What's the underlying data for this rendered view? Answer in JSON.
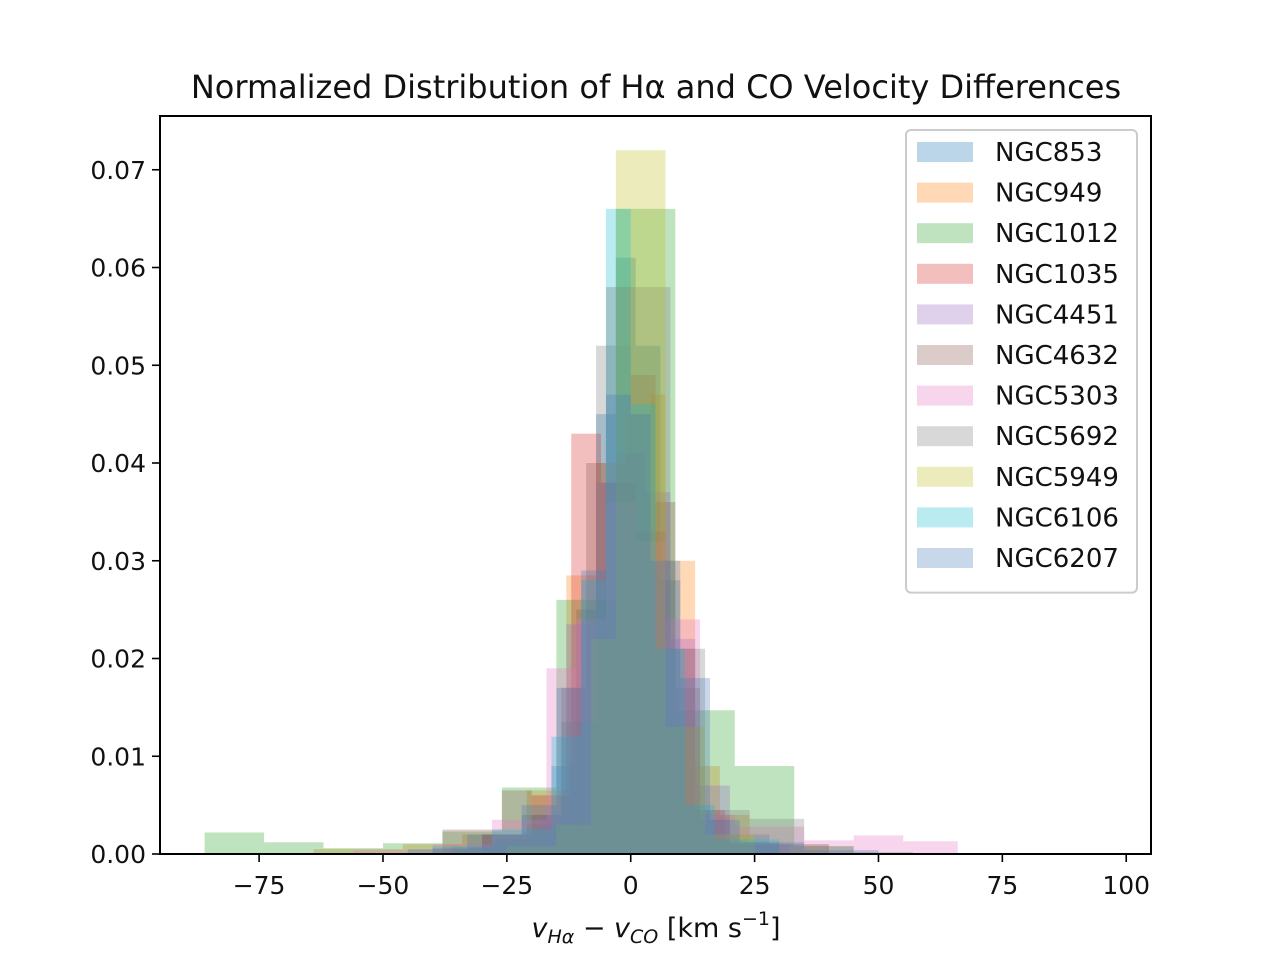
{
  "chart_data": {
    "type": "histogram",
    "title": "Normalized Distribution of Hα and CO Velocity Differences",
    "xlabel": {
      "v1": "v",
      "sub1": "Hα",
      "minus": " − ",
      "v2": "v",
      "sub2": "CO",
      "units": " [km s",
      "exp": "−1",
      "close": "]"
    },
    "ylabel": "",
    "xlim": [
      -95,
      105
    ],
    "ylim": [
      0,
      0.0755
    ],
    "xticks": [
      -75,
      -50,
      -25,
      0,
      25,
      50,
      75,
      100
    ],
    "xtick_labels": [
      "−75",
      "−50",
      "−25",
      "0",
      "25",
      "50",
      "75",
      "100"
    ],
    "yticks": [
      0,
      0.01,
      0.02,
      0.03,
      0.04,
      0.05,
      0.06,
      0.07
    ],
    "ytick_labels": [
      "0.00",
      "0.01",
      "0.02",
      "0.03",
      "0.04",
      "0.05",
      "0.06",
      "0.07"
    ],
    "legend_position": "top-right",
    "series": [
      {
        "name": "NGC853",
        "color": "#1f77b4",
        "bins": [
          [
            -30,
            -22,
            0.002
          ],
          [
            -22,
            -16,
            0.004
          ],
          [
            -16,
            -11,
            0.009
          ],
          [
            -11,
            -7,
            0.025
          ],
          [
            -7,
            -3,
            0.045
          ],
          [
            -3,
            1,
            0.061
          ],
          [
            1,
            6,
            0.052
          ],
          [
            6,
            10,
            0.028
          ],
          [
            10,
            14,
            0.013
          ],
          [
            14,
            20,
            0.004
          ],
          [
            20,
            28,
            0.002
          ],
          [
            28,
            40,
            0.001
          ]
        ]
      },
      {
        "name": "NGC949",
        "color": "#ff7f0e",
        "bins": [
          [
            -64,
            -46,
            0.0005
          ],
          [
            -46,
            -34,
            0.001
          ],
          [
            -34,
            -21,
            0.002
          ],
          [
            -21,
            -13,
            0.0065
          ],
          [
            -13,
            -7,
            0.0285
          ],
          [
            -7,
            -1,
            0.04
          ],
          [
            -1,
            4,
            0.045
          ],
          [
            4,
            7,
            0.047
          ],
          [
            7,
            13,
            0.03
          ],
          [
            13,
            18,
            0.009
          ],
          [
            18,
            24,
            0.004
          ],
          [
            24,
            40,
            0.001
          ]
        ]
      },
      {
        "name": "NGC1012",
        "color": "#2ca02c",
        "bins": [
          [
            -86,
            -74,
            0.0022
          ],
          [
            -74,
            -62,
            0.0012
          ],
          [
            -62,
            -50,
            0.0006
          ],
          [
            -50,
            -38,
            0.0011
          ],
          [
            -38,
            -26,
            0.0023
          ],
          [
            -26,
            -15,
            0.0068
          ],
          [
            -15,
            -3,
            0.026
          ],
          [
            -3,
            9,
            0.066
          ],
          [
            9,
            21,
            0.0147
          ],
          [
            21,
            33,
            0.009
          ],
          [
            33,
            45,
            0.0008
          ],
          [
            45,
            57,
            0.0002
          ]
        ]
      },
      {
        "name": "NGC1035",
        "color": "#d62728",
        "bins": [
          [
            -40,
            -30,
            0.0006
          ],
          [
            -30,
            -20,
            0.002
          ],
          [
            -20,
            -12,
            0.006
          ],
          [
            -12,
            -6,
            0.043
          ],
          [
            -6,
            1,
            0.038
          ],
          [
            1,
            7,
            0.033
          ],
          [
            7,
            13,
            0.021
          ],
          [
            13,
            19,
            0.0045
          ],
          [
            19,
            30,
            0.0012
          ]
        ]
      },
      {
        "name": "NGC4451",
        "color": "#9467bd",
        "bins": [
          [
            -30,
            -18,
            0.001
          ],
          [
            -18,
            -13,
            0.004
          ],
          [
            -13,
            -7,
            0.0235
          ],
          [
            -7,
            -3,
            0.038
          ],
          [
            -3,
            3,
            0.041
          ],
          [
            3,
            8,
            0.037
          ],
          [
            8,
            13,
            0.022
          ],
          [
            13,
            20,
            0.007
          ],
          [
            20,
            32,
            0.001
          ]
        ]
      },
      {
        "name": "NGC4632",
        "color": "#8c564b",
        "bins": [
          [
            -38,
            -26,
            0.0025
          ],
          [
            -26,
            -20,
            0.0065
          ],
          [
            -20,
            -14,
            0.004
          ],
          [
            -14,
            -9,
            0.017
          ],
          [
            -9,
            -5,
            0.04
          ],
          [
            -5,
            0,
            0.058
          ],
          [
            0,
            5,
            0.049
          ],
          [
            5,
            9,
            0.036
          ],
          [
            9,
            14,
            0.017
          ],
          [
            14,
            20,
            0.0035
          ],
          [
            20,
            30,
            0.001
          ]
        ]
      },
      {
        "name": "NGC5303",
        "color": "#e377c2",
        "bins": [
          [
            -56,
            -40,
            0.0004
          ],
          [
            -40,
            -28,
            0.001
          ],
          [
            -28,
            -17,
            0.0035
          ],
          [
            -17,
            -11,
            0.019
          ],
          [
            -11,
            -5,
            0.024
          ],
          [
            -5,
            1,
            0.036
          ],
          [
            1,
            7,
            0.032
          ],
          [
            7,
            14,
            0.024
          ],
          [
            14,
            21,
            0.004
          ],
          [
            21,
            35,
            0.0028
          ],
          [
            35,
            45,
            0.0014
          ],
          [
            45,
            55,
            0.0019
          ],
          [
            55,
            66,
            0.0013
          ]
        ]
      },
      {
        "name": "NGC5692",
        "color": "#7f7f7f",
        "bins": [
          [
            -36,
            -27,
            0.0007
          ],
          [
            -27,
            -21,
            0.0015
          ],
          [
            -21,
            -14,
            0.003
          ],
          [
            -14,
            -7,
            0.0135
          ],
          [
            -7,
            0,
            0.052
          ],
          [
            0,
            8,
            0.058
          ],
          [
            8,
            15,
            0.021
          ],
          [
            15,
            24,
            0.0045
          ],
          [
            24,
            35,
            0.0036
          ],
          [
            35,
            45,
            0.0008
          ]
        ]
      },
      {
        "name": "NGC5949",
        "color": "#bcbd22",
        "bins": [
          [
            -25,
            -15,
            0.0008
          ],
          [
            -15,
            -8,
            0.003
          ],
          [
            -8,
            -3,
            0.022
          ],
          [
            -3,
            7,
            0.072
          ],
          [
            7,
            15,
            0.013
          ],
          [
            15,
            25,
            0.002
          ]
        ]
      },
      {
        "name": "NGC6106",
        "color": "#17becf",
        "bins": [
          [
            -40,
            -28,
            0.0008
          ],
          [
            -28,
            -16,
            0.0025
          ],
          [
            -16,
            -10,
            0.012
          ],
          [
            -10,
            -5,
            0.028
          ],
          [
            -5,
            0,
            0.066
          ],
          [
            0,
            5,
            0.046
          ],
          [
            5,
            11,
            0.021
          ],
          [
            11,
            17,
            0.005
          ],
          [
            17,
            30,
            0.0015
          ]
        ]
      },
      {
        "name": "NGC6207",
        "color": "#4a7ab8",
        "bins": [
          [
            -45,
            -33,
            0.0005
          ],
          [
            -33,
            -22,
            0.002
          ],
          [
            -22,
            -15,
            0.005
          ],
          [
            -15,
            -10,
            0.017
          ],
          [
            -10,
            -5,
            0.029
          ],
          [
            -5,
            0,
            0.047
          ],
          [
            0,
            4,
            0.045
          ],
          [
            4,
            10,
            0.03
          ],
          [
            10,
            16,
            0.018
          ],
          [
            16,
            22,
            0.0035
          ],
          [
            22,
            35,
            0.0012
          ],
          [
            35,
            50,
            0.0004
          ]
        ]
      }
    ]
  }
}
